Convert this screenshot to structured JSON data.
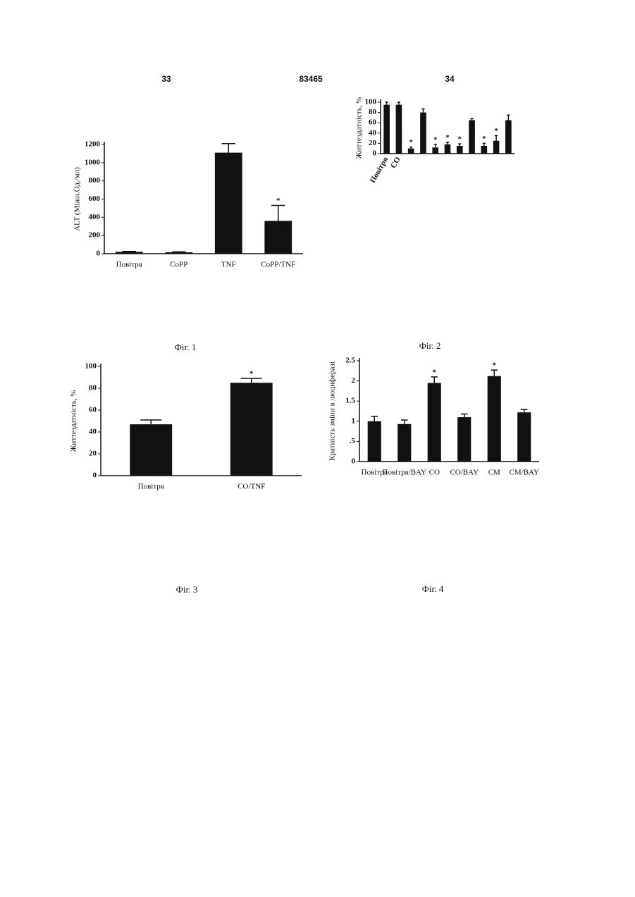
{
  "header": {
    "left": "33",
    "center": "83465",
    "right": "34"
  },
  "chart_data": [
    {
      "type": "bar",
      "caption": "Фіг. 1",
      "ylabel": "ALT (Міжн.Од./мл)",
      "categories": [
        "Повітря",
        "CoPP",
        "TNF",
        "CoPP/TNF"
      ],
      "values": [
        20,
        15,
        1110,
        360
      ],
      "errors": [
        5,
        5,
        100,
        170
      ],
      "ylim": [
        0,
        1200
      ],
      "yticks": [
        0,
        200,
        400,
        600,
        800,
        1000,
        1200
      ],
      "annotations": [
        {
          "index": 3,
          "text": "*"
        }
      ],
      "color": "#111111"
    },
    {
      "type": "bar",
      "caption": "Фіг. 2",
      "ylabel": "Життездатність, %",
      "categories": [
        "Повітря",
        "CO",
        null,
        null,
        null,
        null,
        null,
        null,
        null,
        null,
        null
      ],
      "values": [
        95,
        95,
        10,
        80,
        12,
        18,
        15,
        65,
        15,
        25,
        65
      ],
      "errors": [
        5,
        5,
        3,
        7,
        6,
        4,
        4,
        3,
        5,
        10,
        10
      ],
      "ylim": [
        0,
        100
      ],
      "yticks": [
        0,
        20,
        40,
        60,
        80,
        100
      ],
      "annotations": [
        {
          "index": 2,
          "text": "*"
        },
        {
          "index": 4,
          "text": "*"
        },
        {
          "index": 5,
          "text": "*"
        },
        {
          "index": 6,
          "text": "*"
        },
        {
          "index": 8,
          "text": "*"
        },
        {
          "index": 9,
          "text": "*"
        }
      ],
      "color": "#111111"
    },
    {
      "type": "bar",
      "caption": "Фіг. 3",
      "ylabel": "Життездатність, %",
      "categories": [
        "Повітря",
        "CO/TNF"
      ],
      "values": [
        47,
        85
      ],
      "errors": [
        4,
        4
      ],
      "ylim": [
        0,
        100
      ],
      "yticks": [
        0,
        20,
        40,
        60,
        80,
        100
      ],
      "annotations": [
        {
          "index": 1,
          "text": "*"
        }
      ],
      "color": "#111111"
    },
    {
      "type": "bar",
      "caption": "Фіг. 4",
      "ylabel": "Кратність зміни в люциферазі",
      "categories": [
        "Повітря",
        "Повітря/BAY",
        "CO",
        "CO/BAY",
        "CM",
        "CM/BAY"
      ],
      "values": [
        1.0,
        0.93,
        1.95,
        1.1,
        2.12,
        1.22
      ],
      "errors": [
        0.12,
        0.1,
        0.15,
        0.08,
        0.15,
        0.07
      ],
      "ylim": [
        0,
        2.5
      ],
      "yticks": [
        0,
        {
          "value": 0.5,
          "label": ".5"
        },
        1,
        1.5,
        2,
        2.5
      ],
      "annotations": [
        {
          "index": 2,
          "text": "*"
        },
        {
          "index": 4,
          "text": "*"
        }
      ],
      "color": "#111111"
    }
  ]
}
